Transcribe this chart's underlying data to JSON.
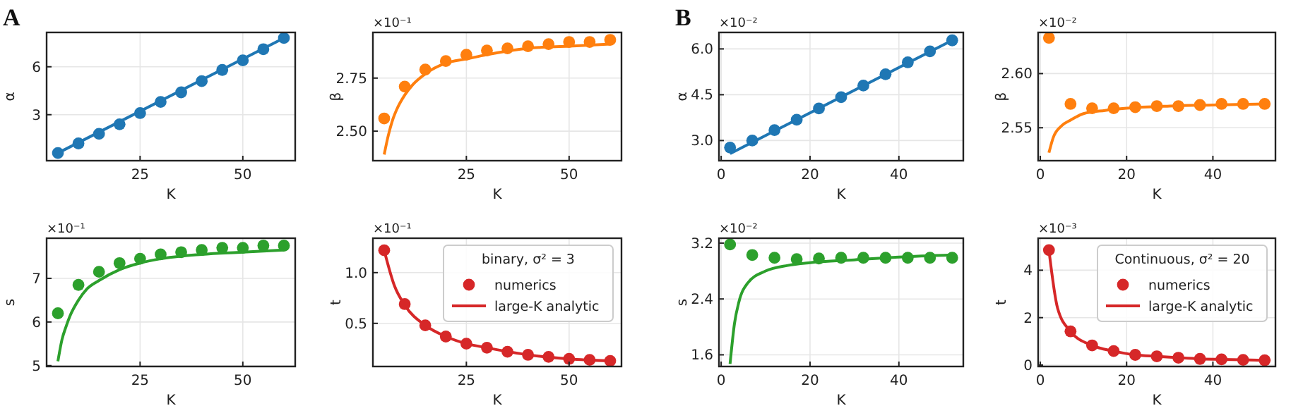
{
  "chart_data": [
    {
      "type": "scatter",
      "title": "A",
      "xlabel": "K",
      "ylabel": "α",
      "xlim": [
        2.25,
        62.75
      ],
      "xticks": [
        25,
        50
      ],
      "ylim": [
        0.12,
        8.15
      ],
      "yticks": [
        3,
        6
      ],
      "grid": true,
      "series": [
        {
          "marker": "circle",
          "color": "#1f77b4",
          "x": [
            5,
            10,
            15,
            20,
            25,
            30,
            35,
            40,
            45,
            50,
            55,
            60
          ],
          "values": [
            0.6,
            1.2,
            1.8,
            2.4,
            3.1,
            3.8,
            4.4,
            5.1,
            5.8,
            6.4,
            7.1,
            7.8
          ]
        },
        {
          "type": "line",
          "line_style": "solid",
          "color": "#1f77b4",
          "x": [
            5,
            60
          ],
          "values": [
            0.6,
            7.8
          ]
        }
      ]
    },
    {
      "type": "scatter",
      "xlabel": "K",
      "ylabel": "β",
      "xlim": [
        2.25,
        62.75
      ],
      "xticks": [
        25,
        50
      ],
      "ylim": [
        2.361,
        2.965
      ],
      "yticks": [
        {
          "value": 2.5,
          "label": "2.50"
        },
        2.75
      ],
      "grid": true,
      "annotations": [
        "×10⁻¹"
      ],
      "series": [
        {
          "marker": "circle",
          "color": "#ff7f0e",
          "x": [
            5,
            10,
            15,
            20,
            25,
            30,
            35,
            40,
            45,
            50,
            55,
            60
          ],
          "values": [
            2.56,
            2.71,
            2.79,
            2.83,
            2.86,
            2.88,
            2.89,
            2.9,
            2.91,
            2.92,
            2.92,
            2.93
          ]
        },
        {
          "type": "line",
          "line_style": "solid",
          "color": "#ff7f0e",
          "x": [
            5,
            6,
            7,
            8,
            10,
            12,
            15,
            20,
            25,
            30,
            40,
            50,
            60
          ],
          "values": [
            2.39,
            2.48,
            2.55,
            2.6,
            2.67,
            2.72,
            2.77,
            2.82,
            2.84,
            2.86,
            2.89,
            2.9,
            2.91
          ]
        }
      ]
    },
    {
      "type": "scatter",
      "xlabel": "K",
      "ylabel": "s",
      "xlim": [
        2.25,
        62.75
      ],
      "xticks": [
        25,
        50
      ],
      "ylim": [
        4.98,
        7.92
      ],
      "yticks": [
        5,
        6,
        7
      ],
      "grid": true,
      "annotations": [
        "×10⁻¹"
      ],
      "series": [
        {
          "marker": "circle",
          "color": "#2ca02c",
          "x": [
            5,
            10,
            15,
            20,
            25,
            30,
            35,
            40,
            45,
            50,
            55,
            60
          ],
          "values": [
            6.2,
            6.85,
            7.15,
            7.35,
            7.45,
            7.55,
            7.6,
            7.65,
            7.7,
            7.7,
            7.75,
            7.75
          ]
        },
        {
          "type": "line",
          "line_style": "solid",
          "color": "#2ca02c",
          "x": [
            5,
            6,
            7,
            8,
            10,
            12,
            15,
            20,
            25,
            30,
            40,
            50,
            60
          ],
          "values": [
            5.1,
            5.6,
            5.9,
            6.15,
            6.5,
            6.75,
            6.95,
            7.2,
            7.35,
            7.45,
            7.55,
            7.6,
            7.65
          ]
        }
      ]
    },
    {
      "type": "scatter",
      "xlabel": "K",
      "ylabel": "t",
      "xlim": [
        2.25,
        62.75
      ],
      "xticks": [
        25,
        50
      ],
      "ylim": [
        0.075,
        1.339
      ],
      "yticks": [
        0.5,
        {
          "value": 1,
          "label": "1.0"
        }
      ],
      "grid": true,
      "annotations": [
        "×10⁻¹"
      ],
      "legend": "top right",
      "legend_title": "binary, σ² = 3",
      "series": [
        {
          "name": "numerics",
          "marker": "circle",
          "color": "#d62728",
          "x": [
            5,
            10,
            15,
            20,
            25,
            30,
            35,
            40,
            45,
            50,
            55,
            60
          ],
          "values": [
            1.22,
            0.69,
            0.48,
            0.37,
            0.3,
            0.26,
            0.22,
            0.19,
            0.17,
            0.15,
            0.14,
            0.13
          ]
        },
        {
          "type": "line",
          "name": "large-K analytic",
          "line_style": "solid",
          "color": "#d62728",
          "x": [
            5,
            7.5,
            10,
            15,
            20,
            25,
            30,
            40,
            50,
            60
          ],
          "values": [
            1.22,
            0.87,
            0.68,
            0.48,
            0.37,
            0.3,
            0.26,
            0.19,
            0.15,
            0.13
          ]
        }
      ]
    },
    {
      "type": "scatter",
      "title": "B",
      "xlabel": "K",
      "ylabel": "α",
      "xlim": [
        -0.5,
        54.5
      ],
      "xticks": [
        0,
        20,
        40
      ],
      "ylim": [
        2.34,
        6.54
      ],
      "yticks": [
        {
          "value": 3,
          "label": "3.0"
        },
        4.5,
        {
          "value": 6,
          "label": "6.0"
        }
      ],
      "grid": true,
      "annotations": [
        "×10⁻²"
      ],
      "series": [
        {
          "marker": "circle",
          "color": "#1f77b4",
          "x": [
            2,
            7,
            12,
            17,
            22,
            27,
            32,
            37,
            42,
            47,
            52
          ],
          "values": [
            2.77,
            3.0,
            3.34,
            3.68,
            4.05,
            4.42,
            4.8,
            5.17,
            5.56,
            5.92,
            6.28
          ]
        },
        {
          "type": "line",
          "line_style": "solid",
          "color": "#1f77b4",
          "x": [
            2,
            52
          ],
          "values": [
            2.57,
            6.28
          ]
        }
      ]
    },
    {
      "type": "scatter",
      "xlabel": "K",
      "ylabel": "β",
      "xlim": [
        -0.5,
        54.5
      ],
      "xticks": [
        0,
        20,
        40
      ],
      "ylim": [
        2.5196,
        2.638
      ],
      "yticks": [
        2.55,
        {
          "value": 2.6,
          "label": "2.60"
        }
      ],
      "grid": true,
      "annotations": [
        "×10⁻²"
      ],
      "series": [
        {
          "marker": "circle",
          "color": "#ff7f0e",
          "x": [
            2,
            7,
            12,
            17,
            22,
            27,
            32,
            37,
            42,
            47,
            52
          ],
          "values": [
            2.633,
            2.572,
            2.568,
            2.568,
            2.569,
            2.57,
            2.57,
            2.571,
            2.572,
            2.572,
            2.572
          ]
        },
        {
          "type": "line",
          "line_style": "solid",
          "color": "#ff7f0e",
          "x": [
            2,
            3,
            5,
            7,
            10,
            15,
            20,
            30,
            40,
            52
          ],
          "values": [
            2.527,
            2.541,
            2.552,
            2.557,
            2.563,
            2.566,
            2.568,
            2.57,
            2.571,
            2.572
          ]
        }
      ]
    },
    {
      "type": "scatter",
      "xlabel": "K",
      "ylabel": "s",
      "xlim": [
        -0.5,
        54.5
      ],
      "xticks": [
        0,
        20,
        40
      ],
      "ylim": [
        1.433,
        3.27
      ],
      "yticks": [
        1.6,
        2.4,
        3.2
      ],
      "grid": true,
      "annotations": [
        "×10⁻²"
      ],
      "series": [
        {
          "marker": "circle",
          "color": "#2ca02c",
          "x": [
            2,
            7,
            12,
            17,
            22,
            27,
            32,
            37,
            42,
            47,
            52
          ],
          "values": [
            3.18,
            3.03,
            2.99,
            2.97,
            2.98,
            2.99,
            2.99,
            2.99,
            2.99,
            2.99,
            2.99
          ]
        },
        {
          "type": "line",
          "line_style": "solid",
          "color": "#2ca02c",
          "x": [
            2,
            3,
            4,
            6,
            10,
            15,
            20,
            30,
            40,
            52
          ],
          "values": [
            1.47,
            2.05,
            2.36,
            2.63,
            2.8,
            2.88,
            2.92,
            2.96,
            3.0,
            3.03
          ]
        }
      ]
    },
    {
      "type": "scatter",
      "xlabel": "K",
      "ylabel": "t",
      "xlim": [
        -0.5,
        54.5
      ],
      "xticks": [
        0,
        20,
        40
      ],
      "ylim": [
        -0.06,
        5.35
      ],
      "yticks": [
        0,
        2,
        4
      ],
      "grid": true,
      "annotations": [
        "×10⁻³"
      ],
      "legend": "top right",
      "legend_title": "Continuous, σ² = 20",
      "series": [
        {
          "name": "numerics",
          "marker": "circle",
          "color": "#d62728",
          "x": [
            2,
            7,
            12,
            17,
            22,
            27,
            32,
            37,
            42,
            47,
            52
          ],
          "values": [
            4.85,
            1.42,
            0.83,
            0.59,
            0.43,
            0.37,
            0.31,
            0.26,
            0.24,
            0.22,
            0.2
          ]
        },
        {
          "type": "line",
          "name": "large-K analytic",
          "line_style": "solid",
          "color": "#d62728",
          "x": [
            2,
            4,
            7,
            12,
            17,
            22,
            27,
            32,
            37,
            42,
            47,
            52
          ],
          "values": [
            4.85,
            2.4,
            1.42,
            0.83,
            0.59,
            0.43,
            0.37,
            0.31,
            0.26,
            0.24,
            0.22,
            0.2
          ]
        }
      ]
    }
  ]
}
